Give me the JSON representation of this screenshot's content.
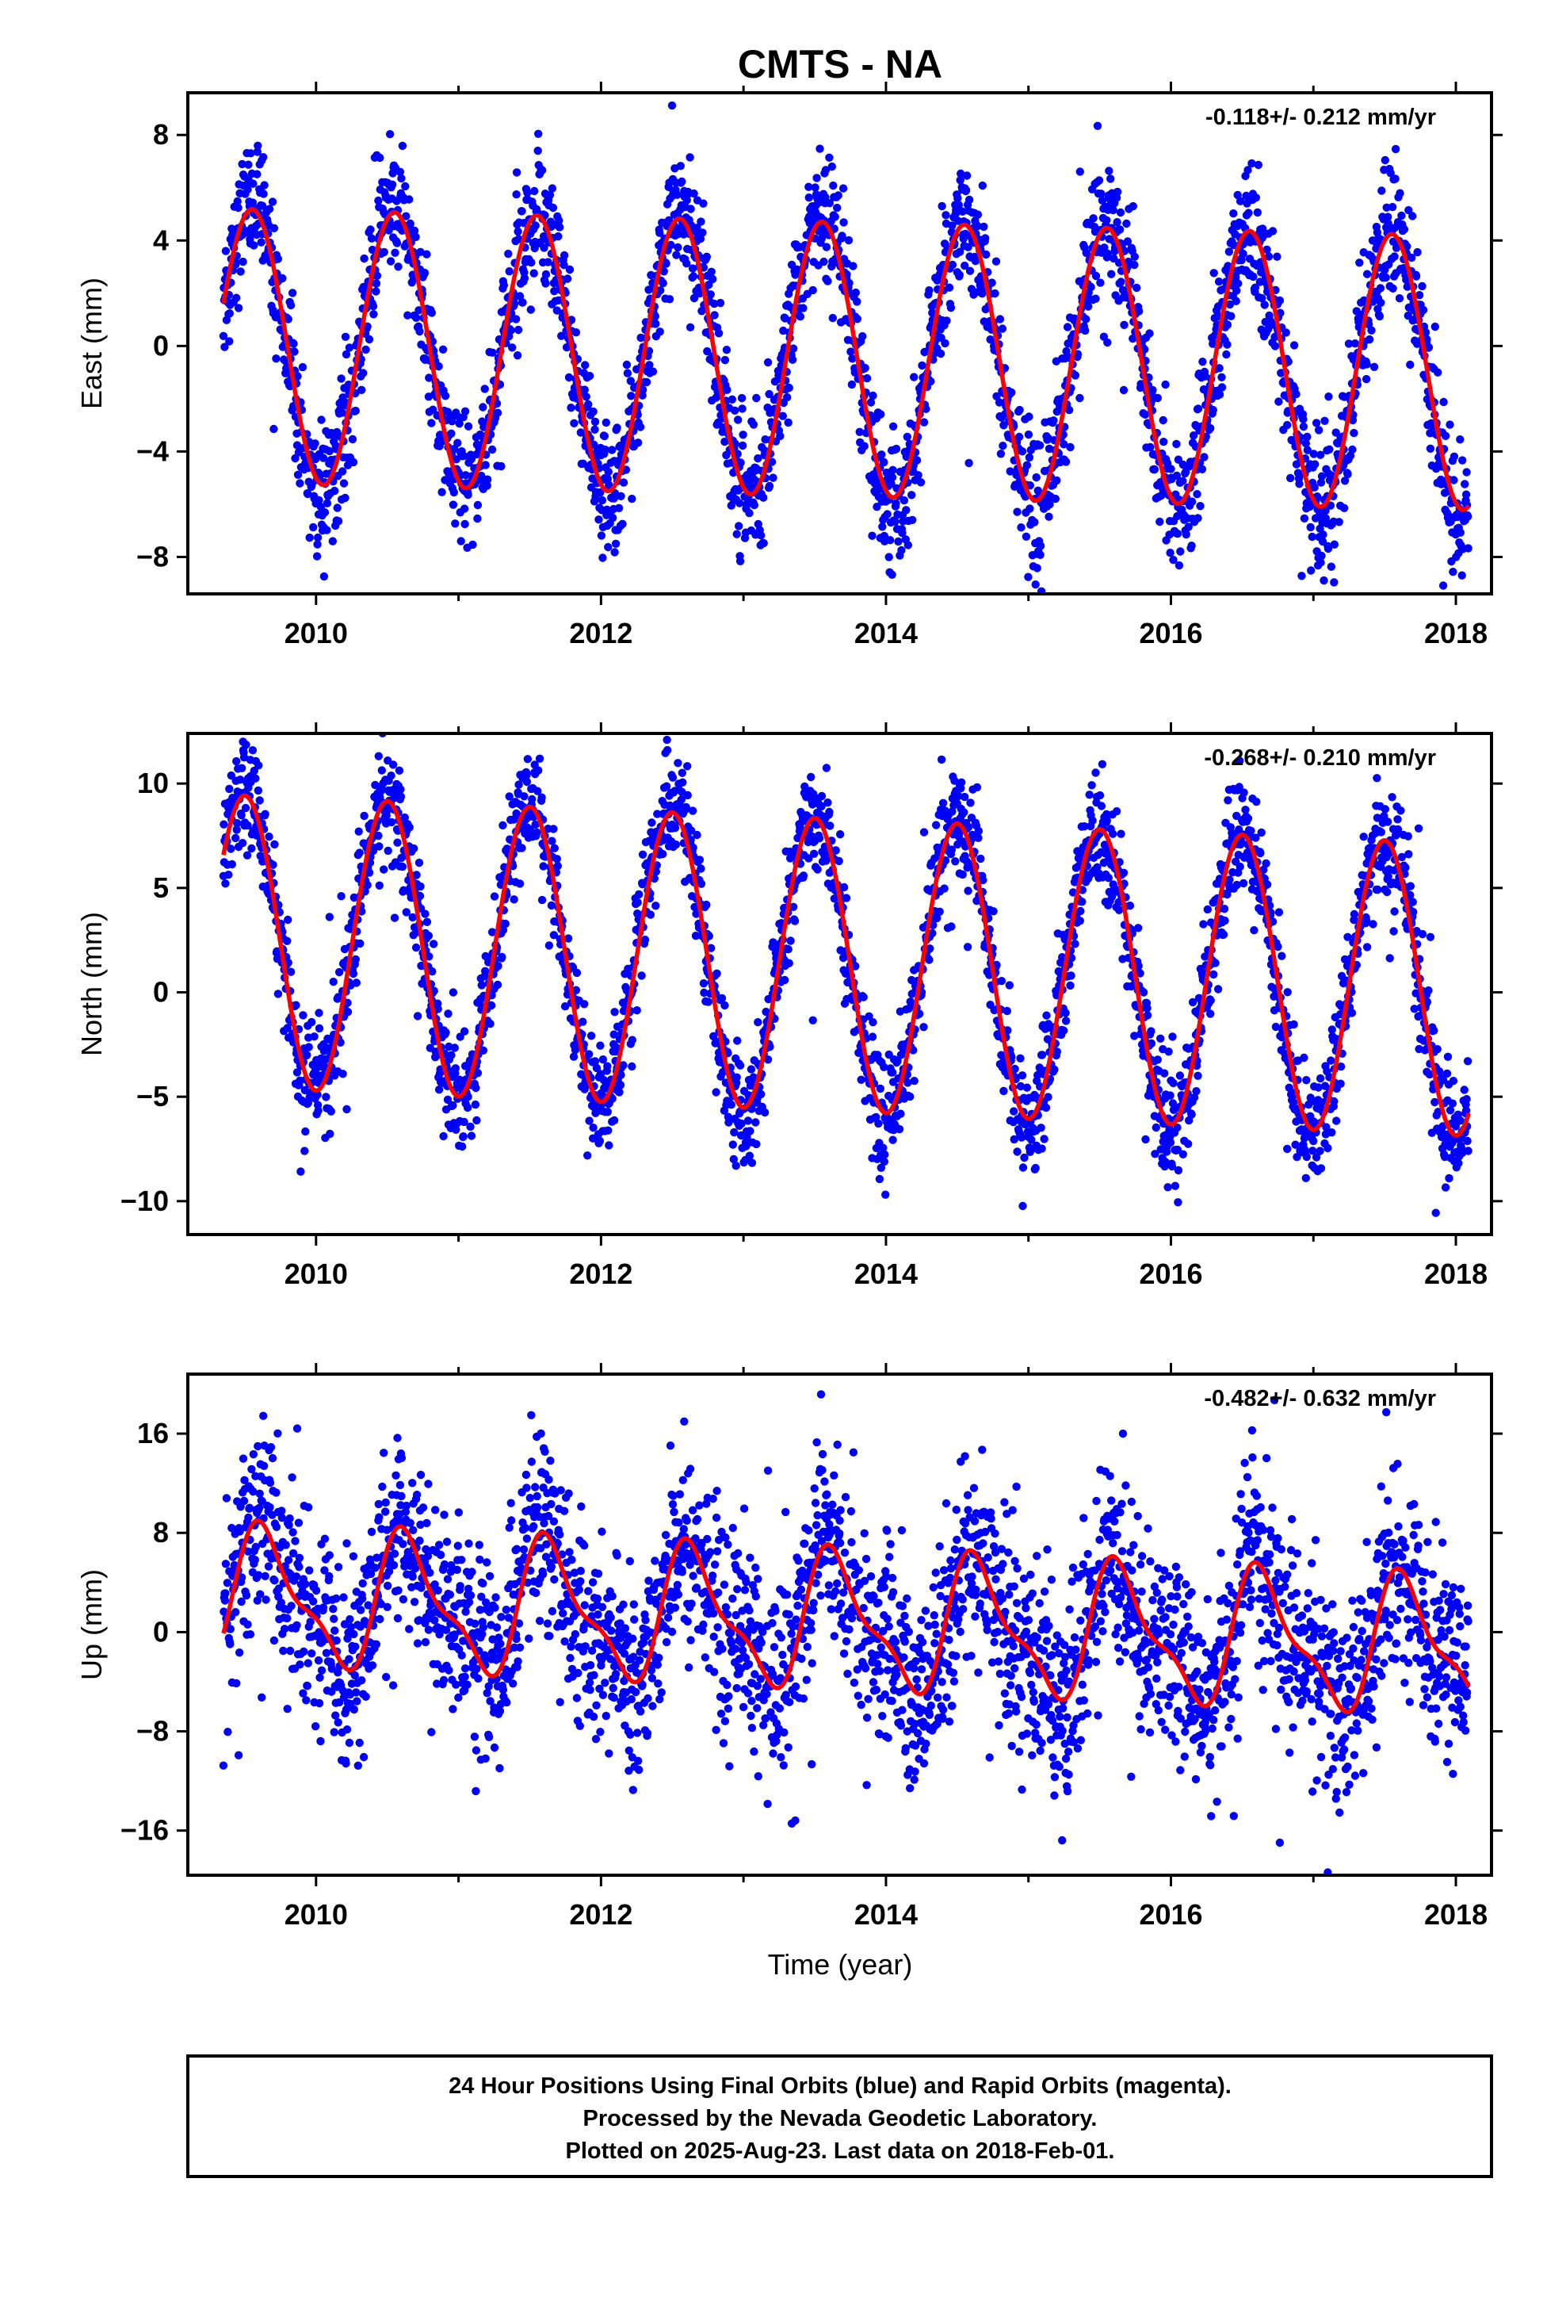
{
  "title": "CMTS - NA",
  "x_axis_title": "Time (year)",
  "footer": {
    "lines": [
      "24 Hour Positions Using Final Orbits (blue) and Rapid Orbits (magenta).",
      "Processed by the Nevada Geodetic Laboratory.",
      "Plotted on 2025-Aug-23. Last data on 2018-Feb-01."
    ]
  },
  "colors": {
    "points": "#0000ff",
    "fit": "#ff0000",
    "frame": "#000000"
  },
  "chart_data": [
    {
      "type": "scatter",
      "ylabel": "East (mm)",
      "rate": "-0.118+/- 0.212 mm/yr",
      "xlim": [
        2009.1,
        2018.25
      ],
      "ylim": [
        -9.4,
        9.6
      ],
      "x_ticks": [
        "2010",
        "2012",
        "2014",
        "2016",
        "2018"
      ],
      "y_ticks": [
        "8",
        "4",
        "0",
        "−4",
        "−8"
      ],
      "y_tick_values": [
        8,
        4,
        0,
        -4,
        -8
      ],
      "data_range": [
        2009.35,
        2018.09
      ],
      "fit": {
        "offset": -0.5,
        "rate": -0.118,
        "annual_amplitude": 5.2,
        "annual_peak": 2009.55
      },
      "scatter_sigma": 1.2,
      "series": [
        {
          "label": "Final Orbits",
          "color": "blue"
        },
        {
          "label": "fit",
          "color": "red"
        }
      ]
    },
    {
      "type": "scatter",
      "ylabel": "North (mm)",
      "rate": "-0.268+/- 0.210 mm/yr",
      "xlim": [
        2009.1,
        2018.25
      ],
      "ylim": [
        -11.6,
        12.4
      ],
      "x_ticks": [
        "2010",
        "2012",
        "2014",
        "2016",
        "2018"
      ],
      "y_ticks": [
        "10",
        "5",
        "0",
        "−5",
        "−10"
      ],
      "y_tick_values": [
        10,
        5,
        0,
        -5,
        -10
      ],
      "data_range": [
        2009.35,
        2018.09
      ],
      "fit": {
        "offset": 1.3,
        "rate": -0.268,
        "annual_amplitude": 7.0,
        "annual_peak": 2009.5
      },
      "scatter_sigma": 1.3,
      "series": [
        {
          "label": "Final Orbits",
          "color": "blue"
        },
        {
          "label": "fit",
          "color": "red"
        }
      ]
    },
    {
      "type": "scatter",
      "ylabel": "Up (mm)",
      "rate": "-0.482+/- 0.632 mm/yr",
      "xlim": [
        2009.1,
        2018.25
      ],
      "ylim": [
        -19.6,
        20.8
      ],
      "x_ticks": [
        "2010",
        "2012",
        "2014",
        "2016",
        "2018"
      ],
      "y_ticks": [
        "16",
        "8",
        "0",
        "−8",
        "−16"
      ],
      "y_tick_values": [
        16,
        8,
        0,
        -8,
        -16
      ],
      "data_range": [
        2009.35,
        2018.09
      ],
      "fit": {
        "offset": 0.8,
        "rate": -0.482,
        "annual_amplitude": 5.0,
        "annual_peak": 2009.65,
        "semiannual_amplitude": 1.8
      },
      "scatter_sigma": 3.8,
      "series": [
        {
          "label": "Final Orbits",
          "color": "blue"
        },
        {
          "label": "fit",
          "color": "red"
        }
      ]
    }
  ]
}
